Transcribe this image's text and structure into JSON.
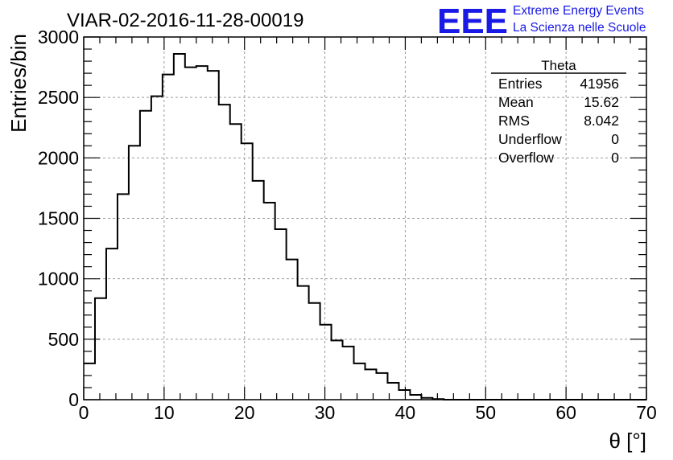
{
  "header": {
    "run_title": "VIAR-02-2016-11-28-00019",
    "logo_text": "EEE",
    "project_line1": "Extreme Energy Events",
    "project_line2": "La Scienza nelle Scuole"
  },
  "stats": {
    "name": "Theta",
    "rows": [
      {
        "label": "Entries",
        "value": "41956"
      },
      {
        "label": "Mean",
        "value": "15.62"
      },
      {
        "label": "RMS",
        "value": "8.042"
      },
      {
        "label": "Underflow",
        "value": "0"
      },
      {
        "label": "Overflow",
        "value": "0"
      }
    ]
  },
  "colors": {
    "brand": "#1a1ae6",
    "grid": "#9a9a9a",
    "line": "#000000"
  },
  "chart_data": {
    "type": "histogram",
    "title": "VIAR-02-2016-11-28-00019",
    "xlabel": "θ [°]",
    "ylabel": "Entries/bin",
    "xlim": [
      0,
      70
    ],
    "ylim": [
      0,
      3000
    ],
    "grid": true,
    "bin_width": 1.4,
    "bin_start": 0,
    "values": [
      300,
      840,
      1250,
      1700,
      2100,
      2390,
      2510,
      2690,
      2860,
      2750,
      2760,
      2720,
      2440,
      2280,
      2120,
      1810,
      1630,
      1410,
      1160,
      940,
      800,
      620,
      490,
      440,
      300,
      250,
      220,
      140,
      80,
      40,
      15,
      5,
      0,
      0,
      0,
      0,
      0,
      0,
      0,
      0,
      0,
      0,
      0,
      0,
      0,
      0,
      0,
      0,
      0,
      0
    ],
    "xticks": [
      0,
      10,
      20,
      30,
      40,
      50,
      60,
      70
    ],
    "yticks": [
      0,
      500,
      1000,
      1500,
      2000,
      2500,
      3000
    ]
  }
}
